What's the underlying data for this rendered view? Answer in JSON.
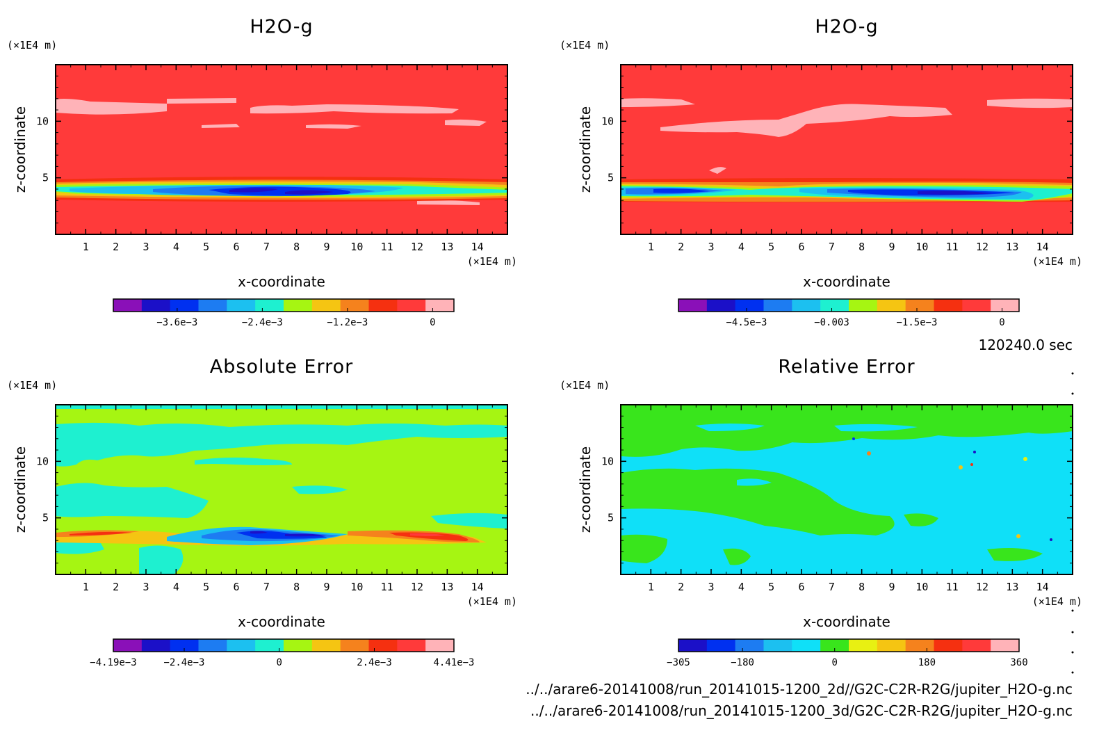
{
  "time_label": "120240.0 sec",
  "files": [
    "../../arare6-20141008/run_20141015-1200_2d//G2C-C2R-R2G/jupiter_H2O-g.nc",
    "../../arare6-20141008/run_20141015-1200_3d/G2C-C2R-R2G/jupiter_H2O-g.nc"
  ],
  "chart_data": [
    {
      "type": "heatmap",
      "title": "H2O-g",
      "xlabel": "x-coordinate",
      "ylabel": "z-coordinate",
      "x_unit": "(×1E4 m)",
      "y_unit": "(×1E4 m)",
      "xlim": [
        0,
        15
      ],
      "ylim": [
        0,
        15
      ],
      "xticks": [
        1,
        2,
        3,
        4,
        5,
        6,
        7,
        8,
        9,
        10,
        11,
        12,
        13,
        14
      ],
      "yticks": [
        5,
        10
      ],
      "colorbar": {
        "colors": [
          "#8a10b8",
          "#1b10c8",
          "#0030f0",
          "#1d7cf2",
          "#1cc0f0",
          "#1ef0d0",
          "#a6f512",
          "#f5c512",
          "#f5821d",
          "#f53010",
          "#ff3a3a",
          "#ffb3b8"
        ],
        "range": [
          -0.0045,
          0.0003
        ],
        "ticks": [
          -0.0036,
          -0.0024,
          -0.0012,
          0
        ],
        "tick_labels": [
          "−3.6e−3",
          "−2.4e−3",
          "−1.2e−3",
          "0"
        ]
      },
      "dominant_value": 0,
      "features": [
        {
          "x": [
            0,
            15
          ],
          "z_center": 3.7,
          "half_width": 0.75,
          "min_value": -0.0042,
          "min_at_x": [
            6.5,
            8.5
          ],
          "description": "negative band"
        }
      ]
    },
    {
      "type": "heatmap",
      "title": "H2O-g",
      "xlabel": "x-coordinate",
      "ylabel": "z-coordinate",
      "x_unit": "(×1E4 m)",
      "y_unit": "(×1E4 m)",
      "xlim": [
        0,
        15
      ],
      "ylim": [
        0,
        15
      ],
      "xticks": [
        1,
        2,
        3,
        4,
        5,
        6,
        7,
        8,
        9,
        10,
        11,
        12,
        13,
        14
      ],
      "yticks": [
        5,
        10
      ],
      "colorbar": {
        "colors": [
          "#8a10b8",
          "#1b10c8",
          "#0030f0",
          "#1d7cf2",
          "#1cc0f0",
          "#1ef0d0",
          "#a6f512",
          "#f5c512",
          "#f5821d",
          "#f53010",
          "#ff3a3a",
          "#ffb3b8"
        ],
        "range": [
          -0.0057,
          0.0003
        ],
        "ticks": [
          -0.0045,
          -0.003,
          -0.0015,
          0
        ],
        "tick_labels": [
          "−4.5e−3",
          "−0.003",
          "−1.5e−3",
          "0"
        ]
      },
      "dominant_value": 0,
      "features": [
        {
          "x": [
            0,
            15
          ],
          "z_center": 3.5,
          "half_width": 0.7,
          "min_value": -0.0055,
          "min_at_x": [
            2,
            11.5
          ]
        }
      ]
    },
    {
      "type": "heatmap",
      "title": "Absolute Error",
      "xlabel": "x-coordinate",
      "ylabel": "z-coordinate",
      "x_unit": "(×1E4 m)",
      "y_unit": "(×1E4 m)",
      "xlim": [
        0,
        15
      ],
      "ylim": [
        0,
        15
      ],
      "xticks": [
        1,
        2,
        3,
        4,
        5,
        6,
        7,
        8,
        9,
        10,
        11,
        12,
        13,
        14
      ],
      "yticks": [
        5,
        10
      ],
      "colorbar": {
        "colors": [
          "#8a10b8",
          "#1b10c8",
          "#0030f0",
          "#1d7cf2",
          "#1cc0f0",
          "#1ef0d0",
          "#a6f512",
          "#f5c512",
          "#f5821d",
          "#f53010",
          "#ff3a3a",
          "#ffb3b8"
        ],
        "range": [
          -0.00419,
          0.00441
        ],
        "ticks": [
          -0.00419,
          -0.0024,
          0,
          0.0024,
          0.00441
        ],
        "tick_labels": [
          "−4.19e−3",
          "−2.4e−3",
          "0",
          "2.4e−3",
          "4.41e−3"
        ]
      },
      "features": [
        {
          "x": [
            0,
            15
          ],
          "z_center": 3.4,
          "description": "negative core near x 6-9, positive near x 2 and x 12-13"
        }
      ]
    },
    {
      "type": "heatmap",
      "title": "Relative Error",
      "xlabel": "x-coordinate",
      "ylabel": "z-coordinate",
      "x_unit": "(×1E4 m)",
      "y_unit": "(×1E4 m)",
      "xlim": [
        0,
        15
      ],
      "ylim": [
        0,
        15
      ],
      "xticks": [
        1,
        2,
        3,
        4,
        5,
        6,
        7,
        8,
        9,
        10,
        11,
        12,
        13,
        14
      ],
      "yticks": [
        5,
        10
      ],
      "colorbar": {
        "colors": [
          "#1b10c8",
          "#0030f0",
          "#1d7cf2",
          "#1cc0f0",
          "#0fe0f8",
          "#39e51c",
          "#e8f012",
          "#f5c512",
          "#f5821d",
          "#f53010",
          "#ff3a3a",
          "#ffb3b8"
        ],
        "range": [
          -305,
          360
        ],
        "ticks": [
          -305,
          -180,
          0,
          180,
          360
        ],
        "tick_labels": [
          "−305",
          "−180",
          "0",
          "180",
          "360"
        ]
      },
      "dominant_values": [
        -30,
        30
      ]
    }
  ]
}
